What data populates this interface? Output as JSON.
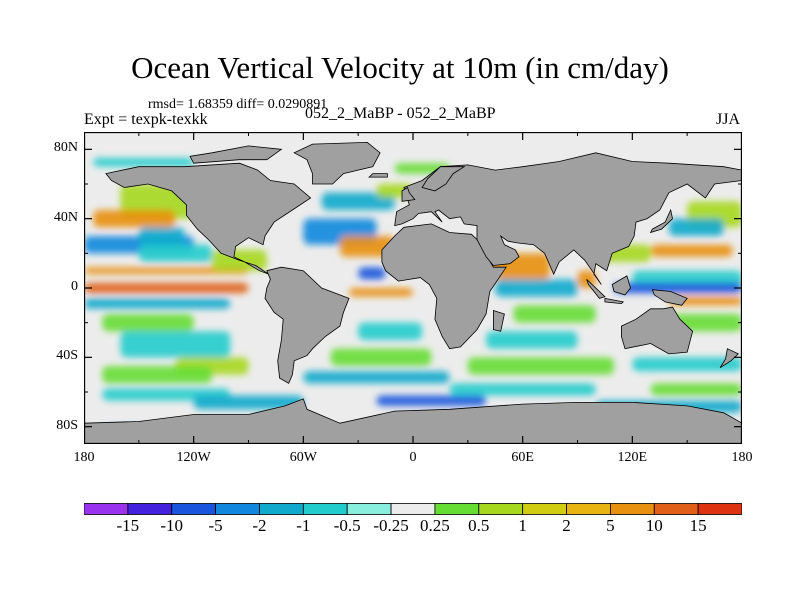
{
  "title": "Ocean Vertical Velocity at 10m (in cm/day)",
  "stats": "rmsd= 1.68359 diff= 0.0290891",
  "experiment": "Expt = texpk-texkk",
  "comparison": "052_2_MaBP - 052_2_MaBP",
  "season": "JJA",
  "map": {
    "projection": "cylindrical-equidistant",
    "lon_range": [
      -180,
      180
    ],
    "lat_range": [
      -90,
      90
    ],
    "land_color": "#a0a0a0",
    "y_ticks": [
      {
        "label": "80N",
        "lat": 80
      },
      {
        "label": "40N",
        "lat": 40
      },
      {
        "label": "0",
        "lat": 0
      },
      {
        "label": "40S",
        "lat": -40
      },
      {
        "label": "80S",
        "lat": -80
      }
    ],
    "x_ticks": [
      {
        "label": "180",
        "lon": -180
      },
      {
        "label": "120W",
        "lon": -120
      },
      {
        "label": "60W",
        "lon": -60
      },
      {
        "label": "0",
        "lon": 0
      },
      {
        "label": "60E",
        "lon": 60
      },
      {
        "label": "120E",
        "lon": 120
      },
      {
        "label": "180",
        "lon": 180
      }
    ]
  },
  "colorbar": {
    "colors": [
      "#9933ee",
      "#4422dd",
      "#1a55dd",
      "#1188dd",
      "#11aacc",
      "#22cccc",
      "#88eedd",
      "#ececec",
      "#66dd33",
      "#a6d81e",
      "#d0cc11",
      "#e8b411",
      "#e8900f",
      "#e0601a",
      "#dd3311"
    ],
    "labels": [
      "-15",
      "-10",
      "-5",
      "-2",
      "-1",
      "-0.5",
      "-0.25",
      "0.25",
      "0.5",
      "1",
      "2",
      "5",
      "10",
      "15"
    ]
  }
}
